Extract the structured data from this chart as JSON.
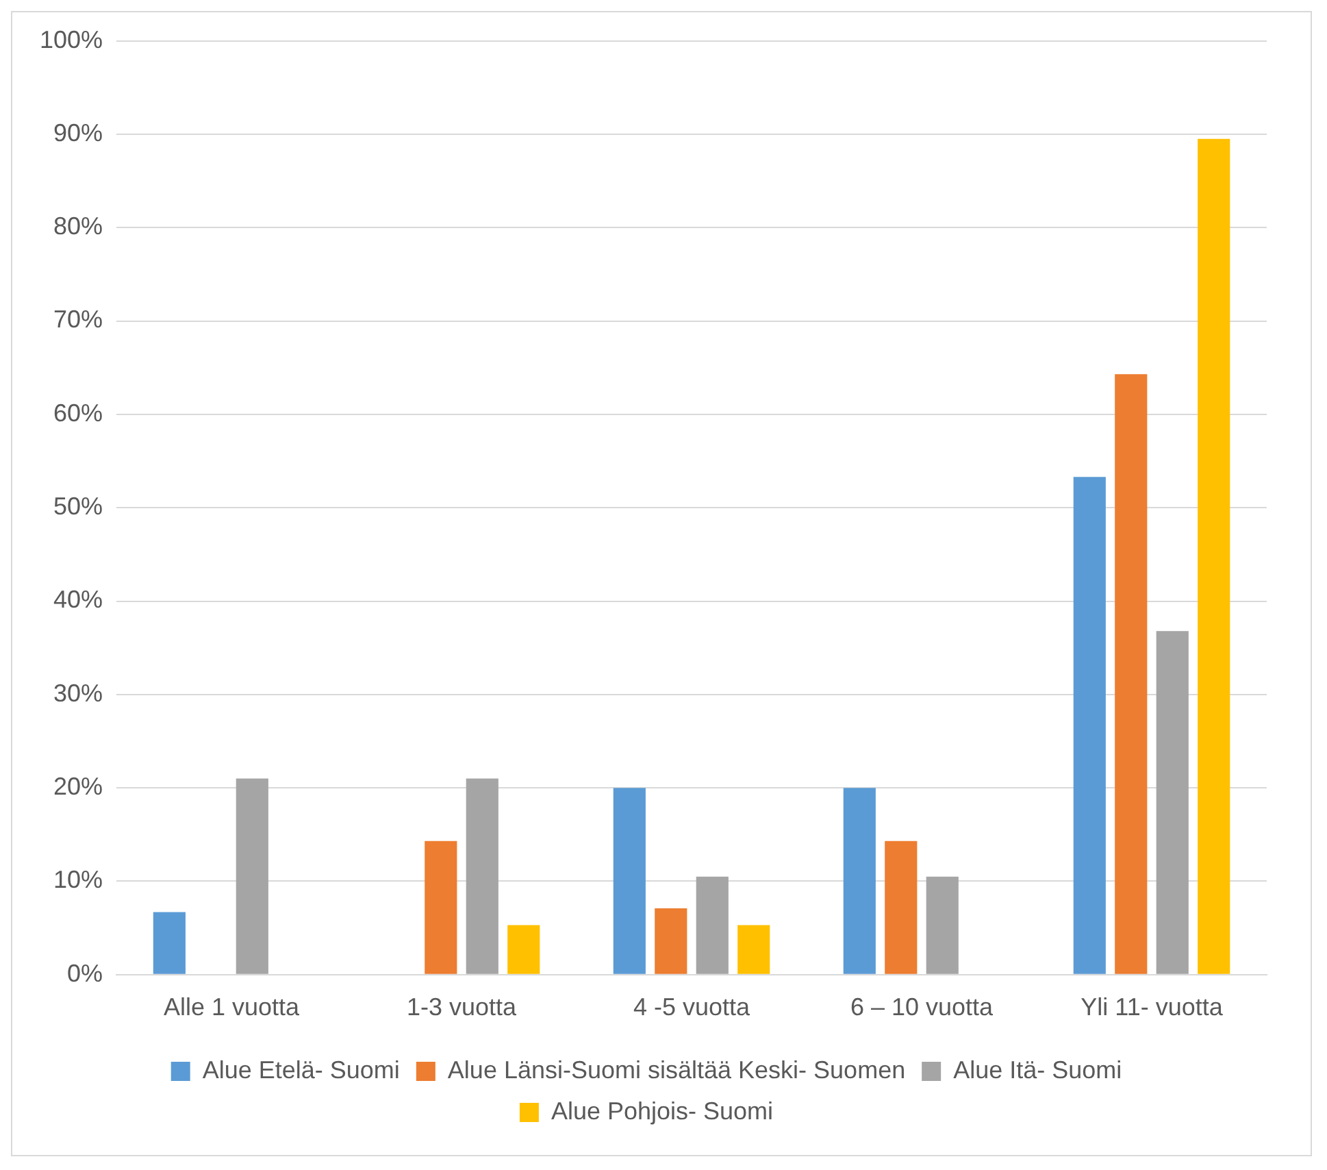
{
  "chart_data": {
    "type": "bar",
    "categories": [
      "Alle 1 vuotta",
      "1-3 vuotta",
      "4 -5 vuotta",
      "6 – 10 vuotta",
      "Yli 11- vuotta"
    ],
    "series": [
      {
        "name": "Alue Etelä- Suomi",
        "color": "#5b9bd5",
        "values": [
          6.7,
          0,
          20,
          20,
          53.3
        ]
      },
      {
        "name": "Alue Länsi-Suomi sisältää Keski- Suomen",
        "color": "#ed7d31",
        "values": [
          0,
          14.3,
          7.1,
          14.3,
          64.3
        ]
      },
      {
        "name": "Alue Itä- Suomi",
        "color": "#a5a5a5",
        "values": [
          21,
          21,
          10.5,
          10.5,
          36.8
        ]
      },
      {
        "name": "Alue Pohjois- Suomi",
        "color": "#ffc000",
        "values": [
          0,
          5.3,
          5.3,
          0,
          89.5
        ]
      }
    ],
    "ylim": [
      0,
      100
    ],
    "yticks": [
      {
        "value": 0,
        "label": "0%"
      },
      {
        "value": 10,
        "label": "10%"
      },
      {
        "value": 20,
        "label": "20%"
      },
      {
        "value": 30,
        "label": "30%"
      },
      {
        "value": 40,
        "label": "40%"
      },
      {
        "value": 50,
        "label": "50%"
      },
      {
        "value": 60,
        "label": "60%"
      },
      {
        "value": 70,
        "label": "70%"
      },
      {
        "value": 80,
        "label": "80%"
      },
      {
        "value": 90,
        "label": "90%"
      },
      {
        "value": 100,
        "label": "100%"
      }
    ],
    "grid": "y",
    "legend": "bottom"
  }
}
